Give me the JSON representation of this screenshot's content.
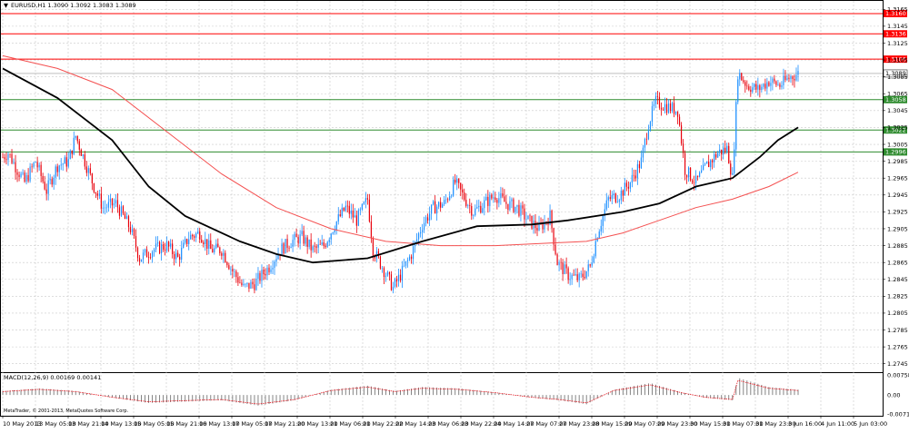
{
  "chart_data": {
    "type": "candlestick",
    "symbol_header": "EURUSD,H1  1.3090 1.3092 1.3083 1.3089",
    "macd_header": "MACD(12,26,9) 0.00169 0.00141",
    "copyright": "MetaTrader, © 2001-2013, MetaQuotes Software Corp.",
    "ylim": [
      1.2735,
      1.3175
    ],
    "y_ticks": [
      "1.3165",
      "1.3145",
      "1.3125",
      "1.3105",
      "1.3085",
      "1.3065",
      "1.3045",
      "1.3025",
      "1.3005",
      "1.2985",
      "1.2965",
      "1.2945",
      "1.2925",
      "1.2905",
      "1.2885",
      "1.2865",
      "1.2845",
      "1.2825",
      "1.2805",
      "1.2785",
      "1.2765",
      "1.2745"
    ],
    "current_price": "1.3089",
    "resistance_levels": [
      {
        "label": "1.3160",
        "value": 1.316,
        "color": "#ff0000"
      },
      {
        "label": "1.3136",
        "value": 1.3136,
        "color": "#ff0000"
      },
      {
        "label": "1.3106",
        "value": 1.3106,
        "color": "#ff0000"
      }
    ],
    "support_levels": [
      {
        "label": "1.3058",
        "value": 1.3058,
        "color": "#2e8b2e"
      },
      {
        "label": "1.3022",
        "value": 1.3022,
        "color": "#2e8b2e"
      },
      {
        "label": "1.2996",
        "value": 1.2996,
        "color": "#2e8b2e"
      }
    ],
    "x_labels": [
      "10 May 2013",
      "13 May 05:00",
      "13 May 21:00",
      "14 May 13:00",
      "15 May 05:00",
      "15 May 21:00",
      "16 May 13:00",
      "17 May 05:00",
      "17 May 21:00",
      "20 May 13:00",
      "21 May 06:00",
      "21 May 22:00",
      "22 May 14:00",
      "23 May 06:00",
      "23 May 22:00",
      "24 May 14:00",
      "27 May 07:00",
      "27 May 23:00",
      "28 May 15:00",
      "29 May 07:00",
      "29 May 23:00",
      "30 May 15:00",
      "31 May 07:00",
      "31 May 23:00",
      "3 Jun 16:00",
      "4 Jun 11:00",
      "5 Jun 03:00"
    ],
    "macd_ticks": [
      "0.00758",
      "0.00",
      "-0.00715"
    ],
    "macd_ylim": [
      -0.00715,
      0.00758
    ],
    "price_path": [
      [
        0,
        1.299
      ],
      [
        3,
        1.2995
      ],
      [
        8,
        1.2975
      ],
      [
        12,
        1.296
      ],
      [
        18,
        1.2985
      ],
      [
        24,
        1.295
      ],
      [
        30,
        1.298
      ],
      [
        36,
        1.2985
      ],
      [
        40,
        1.3015
      ],
      [
        45,
        1.2985
      ],
      [
        50,
        1.2955
      ],
      [
        55,
        1.293
      ],
      [
        62,
        1.2935
      ],
      [
        70,
        1.2905
      ],
      [
        75,
        1.287
      ],
      [
        82,
        1.288
      ],
      [
        90,
        1.2885
      ],
      [
        96,
        1.287
      ],
      [
        102,
        1.2895
      ],
      [
        108,
        1.29
      ],
      [
        114,
        1.288
      ],
      [
        120,
        1.288
      ],
      [
        126,
        1.2855
      ],
      [
        132,
        1.2835
      ],
      [
        138,
        1.284
      ],
      [
        146,
        1.286
      ],
      [
        152,
        1.288
      ],
      [
        158,
        1.289
      ],
      [
        164,
        1.2895
      ],
      [
        170,
        1.288
      ],
      [
        176,
        1.2885
      ],
      [
        182,
        1.291
      ],
      [
        188,
        1.293
      ],
      [
        194,
        1.2915
      ],
      [
        200,
        1.294
      ],
      [
        203,
        1.288
      ],
      [
        208,
        1.286
      ],
      [
        214,
        1.2835
      ],
      [
        218,
        1.285
      ],
      [
        224,
        1.2875
      ],
      [
        230,
        1.291
      ],
      [
        236,
        1.293
      ],
      [
        242,
        1.2935
      ],
      [
        248,
        1.296
      ],
      [
        252,
        1.2945
      ],
      [
        258,
        1.2925
      ],
      [
        264,
        1.2935
      ],
      [
        270,
        1.2945
      ],
      [
        276,
        1.2935
      ],
      [
        282,
        1.293
      ],
      [
        288,
        1.2915
      ],
      [
        294,
        1.2905
      ],
      [
        300,
        1.292
      ],
      [
        304,
        1.2865
      ],
      [
        310,
        1.285
      ],
      [
        316,
        1.2845
      ],
      [
        322,
        1.286
      ],
      [
        326,
        1.29
      ],
      [
        332,
        1.294
      ],
      [
        338,
        1.2945
      ],
      [
        344,
        1.296
      ],
      [
        350,
        1.2985
      ],
      [
        354,
        1.303
      ],
      [
        358,
        1.3055
      ],
      [
        364,
        1.305
      ],
      [
        370,
        1.3045
      ],
      [
        374,
        1.2975
      ],
      [
        380,
        1.296
      ],
      [
        386,
        1.298
      ],
      [
        392,
        1.2995
      ],
      [
        397,
        1.3
      ],
      [
        400,
        1.2965
      ],
      [
        403,
        1.309
      ],
      [
        408,
        1.3075
      ],
      [
        414,
        1.307
      ],
      [
        420,
        1.308
      ],
      [
        426,
        1.3075
      ],
      [
        432,
        1.3085
      ],
      [
        436,
        1.3089
      ]
    ],
    "total_bars": 437,
    "ma_black": [
      [
        0,
        1.3095
      ],
      [
        30,
        1.306
      ],
      [
        60,
        1.301
      ],
      [
        80,
        1.2955
      ],
      [
        100,
        1.292
      ],
      [
        130,
        1.289
      ],
      [
        150,
        1.2875
      ],
      [
        170,
        1.2865
      ],
      [
        200,
        1.287
      ],
      [
        230,
        1.289
      ],
      [
        260,
        1.2908
      ],
      [
        290,
        1.291
      ],
      [
        310,
        1.2915
      ],
      [
        340,
        1.2925
      ],
      [
        360,
        1.2935
      ],
      [
        380,
        1.2955
      ],
      [
        400,
        1.2965
      ],
      [
        415,
        1.299
      ],
      [
        425,
        1.301
      ],
      [
        436,
        1.3025
      ]
    ],
    "ma_red": [
      [
        0,
        1.311
      ],
      [
        30,
        1.3095
      ],
      [
        60,
        1.307
      ],
      [
        90,
        1.302
      ],
      [
        120,
        1.297
      ],
      [
        150,
        1.293
      ],
      [
        180,
        1.2905
      ],
      [
        210,
        1.289
      ],
      [
        240,
        1.2885
      ],
      [
        270,
        1.2885
      ],
      [
        300,
        1.2888
      ],
      [
        320,
        1.289
      ],
      [
        340,
        1.29
      ],
      [
        360,
        1.2915
      ],
      [
        380,
        1.293
      ],
      [
        400,
        1.294
      ],
      [
        420,
        1.2955
      ],
      [
        436,
        1.2972
      ]
    ],
    "macd_path": [
      [
        0,
        0.0015
      ],
      [
        20,
        0.0025
      ],
      [
        40,
        0.0015
      ],
      [
        60,
        -0.001
      ],
      [
        80,
        -0.003
      ],
      [
        100,
        -0.0025
      ],
      [
        120,
        -0.002
      ],
      [
        140,
        -0.004
      ],
      [
        160,
        -0.002
      ],
      [
        180,
        0.002
      ],
      [
        200,
        0.0035
      ],
      [
        215,
        0.0015
      ],
      [
        230,
        0.003
      ],
      [
        250,
        0.0025
      ],
      [
        270,
        0.001
      ],
      [
        290,
        -0.001
      ],
      [
        305,
        -0.002
      ],
      [
        320,
        -0.0035
      ],
      [
        335,
        0.002
      ],
      [
        355,
        0.0045
      ],
      [
        372,
        0.001
      ],
      [
        385,
        -0.001
      ],
      [
        400,
        -0.002
      ],
      [
        403,
        0.0065
      ],
      [
        420,
        0.003
      ],
      [
        436,
        0.002
      ]
    ],
    "colors": {
      "bull": "#1e90ff",
      "bear": "#e8000b",
      "ma_black": "#000000",
      "ma_red": "#f45050",
      "grid": "#c9c9c9"
    }
  }
}
